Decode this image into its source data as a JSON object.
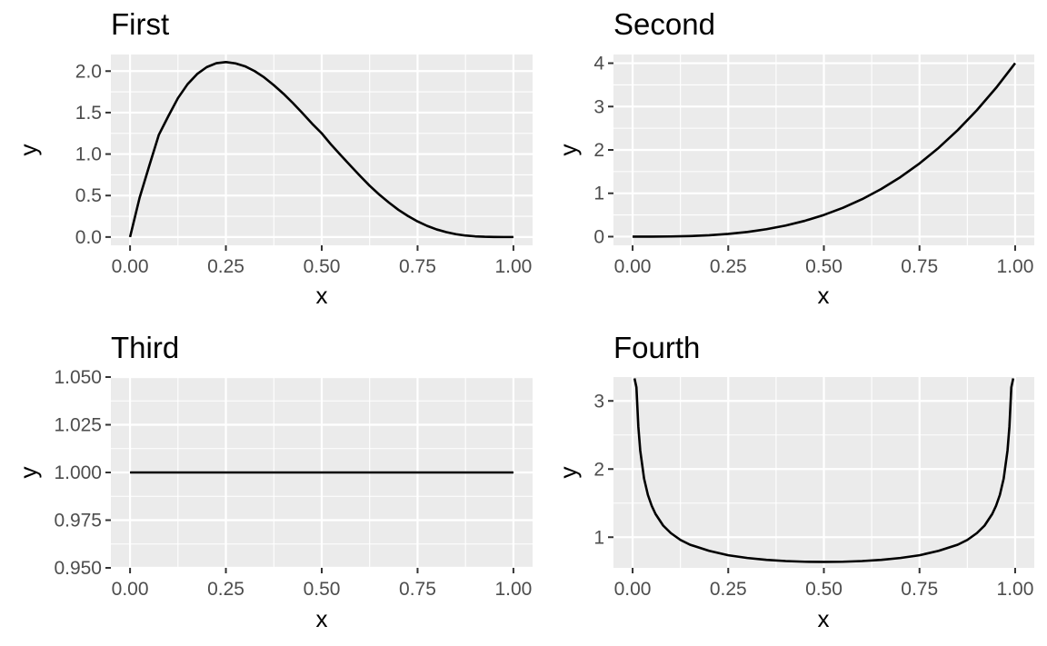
{
  "chart_data": [
    {
      "type": "line",
      "title": "First",
      "xlabel": "x",
      "ylabel": "y",
      "xlim": [
        -0.05,
        1.05
      ],
      "ylim": [
        -0.1,
        2.2
      ],
      "x_ticks": [
        0,
        0.25,
        0.5,
        0.75,
        1
      ],
      "x_tick_labels": [
        "0.00",
        "0.25",
        "0.50",
        "0.75",
        "1.00"
      ],
      "y_ticks": [
        0,
        0.5,
        1,
        1.5,
        2
      ],
      "y_tick_labels": [
        "0.0",
        "0.5",
        "1.0",
        "1.5",
        "2.0"
      ],
      "grid": true,
      "series": [
        {
          "x": [
            0,
            0.025,
            0.05,
            0.075,
            0.1,
            0.125,
            0.15,
            0.175,
            0.2,
            0.225,
            0.25,
            0.275,
            0.3,
            0.325,
            0.35,
            0.375,
            0.4,
            0.425,
            0.45,
            0.475,
            0.5,
            0.525,
            0.55,
            0.575,
            0.6,
            0.625,
            0.65,
            0.675,
            0.7,
            0.725,
            0.75,
            0.775,
            0.8,
            0.825,
            0.85,
            0.875,
            0.9,
            0.925,
            0.95,
            0.975,
            1
          ],
          "y": [
            0,
            0.475,
            0.857,
            1.231,
            1.458,
            1.675,
            1.842,
            1.965,
            2.048,
            2.095,
            2.109,
            2.093,
            2.058,
            2.0,
            1.924,
            1.83,
            1.728,
            1.614,
            1.492,
            1.366,
            1.25,
            1.111,
            0.984,
            0.86,
            0.737,
            0.618,
            0.512,
            0.416,
            0.328,
            0.253,
            0.188,
            0.134,
            0.091,
            0.059,
            0.034,
            0.018,
            0.008,
            0.003,
            0.001,
            0.0,
            0
          ]
        }
      ]
    },
    {
      "type": "line",
      "title": "Second",
      "xlabel": "x",
      "ylabel": "y",
      "xlim": [
        -0.05,
        1.05
      ],
      "ylim": [
        -0.2,
        4.2
      ],
      "x_ticks": [
        0,
        0.25,
        0.5,
        0.75,
        1
      ],
      "x_tick_labels": [
        "0.00",
        "0.25",
        "0.50",
        "0.75",
        "1.00"
      ],
      "y_ticks": [
        0,
        1,
        2,
        3,
        4
      ],
      "y_tick_labels": [
        "0",
        "1",
        "2",
        "3",
        "4"
      ],
      "grid": true,
      "series": [
        {
          "x": [
            0,
            0.05,
            0.1,
            0.15,
            0.2,
            0.25,
            0.3,
            0.35,
            0.4,
            0.45,
            0.5,
            0.55,
            0.6,
            0.65,
            0.7,
            0.75,
            0.8,
            0.85,
            0.9,
            0.95,
            1
          ],
          "y": [
            0,
            0.0005,
            0.004,
            0.0135,
            0.032,
            0.0625,
            0.108,
            0.1715,
            0.256,
            0.3645,
            0.5,
            0.6655,
            0.864,
            1.0985,
            1.372,
            1.6875,
            2.048,
            2.4565,
            2.916,
            3.4295,
            4.0
          ]
        }
      ]
    },
    {
      "type": "line",
      "title": "Third",
      "xlabel": "x",
      "ylabel": "y",
      "xlim": [
        -0.05,
        1.05
      ],
      "ylim": [
        0.95,
        1.05
      ],
      "x_ticks": [
        0,
        0.25,
        0.5,
        0.75,
        1
      ],
      "x_tick_labels": [
        "0.00",
        "0.25",
        "0.50",
        "0.75",
        "1.00"
      ],
      "y_ticks": [
        0.95,
        0.975,
        1.0,
        1.025,
        1.05
      ],
      "y_tick_labels": [
        "0.950",
        "0.975",
        "1.000",
        "1.025",
        "1.050"
      ],
      "grid": true,
      "series": [
        {
          "x": [
            0,
            0.25,
            0.5,
            0.75,
            1
          ],
          "y": [
            1,
            1,
            1,
            1,
            1
          ]
        }
      ]
    },
    {
      "type": "line",
      "title": "Fourth",
      "xlabel": "x",
      "ylabel": "y",
      "xlim": [
        -0.05,
        1.05
      ],
      "ylim": [
        0.55,
        3.35
      ],
      "x_ticks": [
        0,
        0.25,
        0.5,
        0.75,
        1
      ],
      "x_tick_labels": [
        "0.00",
        "0.25",
        "0.50",
        "0.75",
        "1.00"
      ],
      "y_ticks": [
        1,
        2,
        3
      ],
      "y_tick_labels": [
        "1",
        "2",
        "3"
      ],
      "grid": true,
      "series": [
        {
          "x": [
            0.005,
            0.01,
            0.015,
            0.02,
            0.03,
            0.04,
            0.05,
            0.06,
            0.08,
            0.1,
            0.125,
            0.15,
            0.2,
            0.25,
            0.3,
            0.35,
            0.4,
            0.45,
            0.5,
            0.55,
            0.6,
            0.65,
            0.7,
            0.75,
            0.8,
            0.85,
            0.875,
            0.9,
            0.92,
            0.94,
            0.95,
            0.96,
            0.97,
            0.98,
            0.985,
            0.99,
            0.995
          ],
          "y": [
            3.33,
            3.2,
            2.62,
            2.27,
            1.86,
            1.62,
            1.46,
            1.34,
            1.17,
            1.06,
            0.96,
            0.89,
            0.8,
            0.735,
            0.695,
            0.668,
            0.65,
            0.64,
            0.637,
            0.64,
            0.65,
            0.668,
            0.695,
            0.735,
            0.8,
            0.89,
            0.96,
            1.06,
            1.17,
            1.34,
            1.46,
            1.62,
            1.86,
            2.27,
            2.62,
            3.2,
            3.33
          ]
        }
      ]
    }
  ]
}
